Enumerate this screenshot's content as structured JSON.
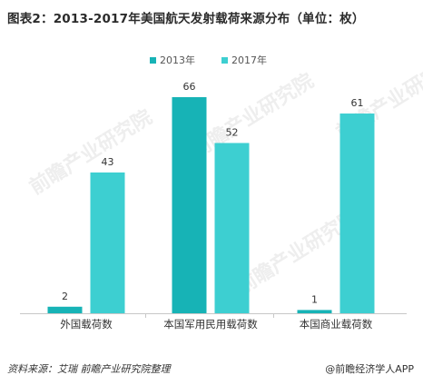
{
  "title": "图表2：2013-2017年美国航天发射载荷来源分布（单位：枚）",
  "source": "资料来源：艾瑞 前瞻产业研究院整理",
  "brand": "@前瞻经济学人APP",
  "watermark": "前瞻产业研究院",
  "colors": {
    "series_2013": "#17b3b6",
    "series_2017": "#3dcfd1",
    "axis": "#c8c8c8",
    "label": "#333333"
  },
  "chart_data": {
    "type": "bar",
    "categories": [
      "外国载荷数",
      "本国军用民用载荷数",
      "本国商业载荷数"
    ],
    "series": [
      {
        "name": "2013年",
        "values": [
          2,
          66,
          1
        ]
      },
      {
        "name": "2017年",
        "values": [
          43,
          52,
          61
        ]
      }
    ],
    "legend_position": "top-center",
    "grid": false,
    "ylim": [
      0,
      66
    ]
  }
}
